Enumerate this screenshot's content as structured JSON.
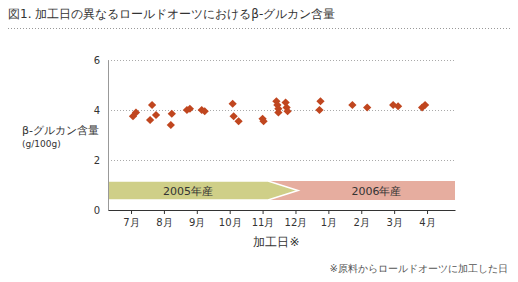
{
  "chart_data": {
    "type": "scatter",
    "title": "図1. 加工日の異なるロールドオーツにおけるβ-グルカン含量",
    "y_label": [
      "β-グルカン含量",
      "(g/100g)"
    ],
    "x_label": "加工日※",
    "annotations": [
      "2005年産",
      "2006年産",
      "※原料からロールドオーツに加工した日"
    ],
    "x": [
      7.06,
      7.15,
      7.64,
      7.58,
      7.76,
      8.21,
      8.24,
      8.7,
      8.79,
      9.15,
      9.24,
      10.09,
      10.12,
      10.27,
      11.0,
      11.03,
      11.42,
      11.45,
      11.48,
      11.48,
      11.7,
      11.73,
      11.76,
      12.76,
      12.73,
      13.73,
      14.18,
      14.97,
      15.12,
      15.85,
      15.94
    ],
    "values": [
      3.75,
      3.9,
      4.2,
      3.6,
      3.8,
      3.4,
      3.85,
      4.0,
      4.05,
      4.0,
      3.95,
      4.25,
      3.75,
      3.55,
      3.65,
      3.55,
      4.35,
      4.2,
      4.05,
      3.9,
      4.3,
      4.1,
      3.95,
      4.35,
      4.0,
      4.2,
      4.1,
      4.2,
      4.15,
      4.1,
      4.2
    ],
    "color": "#c0461f",
    "marker": "diamond",
    "xlim": [
      6.3,
      16.85
    ],
    "xticks": [
      {
        "value": 7,
        "label": "7月"
      },
      {
        "value": 8,
        "label": "8月"
      },
      {
        "value": 9,
        "label": "9月"
      },
      {
        "value": 10,
        "label": "10月"
      },
      {
        "value": 11,
        "label": "11月"
      },
      {
        "value": 12,
        "label": "12月"
      },
      {
        "value": 13,
        "label": "1月"
      },
      {
        "value": 14,
        "label": "2月"
      },
      {
        "value": 15,
        "label": "3月"
      },
      {
        "value": 16,
        "label": "4月"
      }
    ],
    "ylim": [
      0,
      6
    ],
    "yticks": [
      0,
      2,
      4,
      6
    ],
    "grid": true
  }
}
